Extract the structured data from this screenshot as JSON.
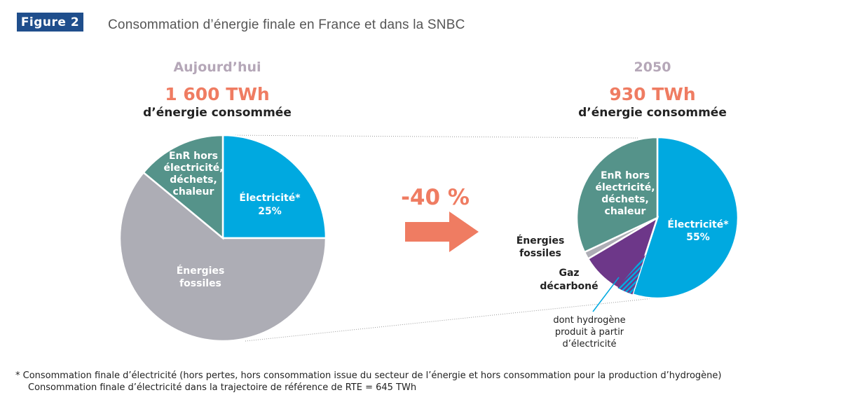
{
  "figure": {
    "badge": "Figure 2",
    "title": "Consommation d’énergie finale en France et dans la SNBC"
  },
  "chart_data": [
    {
      "type": "pie",
      "period": "Aujourd’hui",
      "total": "1 600 TWh",
      "total_sub": "d’énergie consommée",
      "slices": [
        {
          "key": "electricite",
          "label": "Électricité*",
          "value_label": "25%",
          "value": 25,
          "color": "#00a9e0",
          "text_color": "#ffffff"
        },
        {
          "key": "fossiles",
          "label": "Énergies fossiles",
          "value": 61,
          "color": "#adadb5",
          "text_color": "#ffffff"
        },
        {
          "key": "enr",
          "label": "EnR hors électricité, déchets, chaleur",
          "value": 14,
          "color": "#55938a",
          "text_color": "#ffffff"
        }
      ]
    },
    {
      "type": "pie",
      "period": "2050",
      "total": "930 TWh",
      "total_sub": "d’énergie consommée",
      "slices": [
        {
          "key": "electricite",
          "label": "Électricité*",
          "value_label": "55%",
          "value": 55,
          "color": "#00a9e0",
          "text_color": "#ffffff"
        },
        {
          "key": "gaz",
          "label": "Gaz décarboné",
          "value": 11.5,
          "color": "#6d3789"
        },
        {
          "key": "fossiles",
          "label": "Énergies fossiles",
          "value": 1.5,
          "color": "#adadb5"
        },
        {
          "key": "enr",
          "label": "EnR hors électricité, déchets, chaleur",
          "value": 32,
          "color": "#55938a",
          "text_color": "#ffffff"
        }
      ],
      "annotation": "dont hydrogène produit à partir d’électricité"
    }
  ],
  "reduction": "-40 %",
  "footnote": {
    "line1": "* Consommation finale d’électricité (hors pertes, hors consommation issue du secteur de l’énergie et hors consommation pour la production d’hydrogène)",
    "line2": "Consommation finale d’électricité dans la trajectoire de référence de RTE = 645 TWh"
  }
}
